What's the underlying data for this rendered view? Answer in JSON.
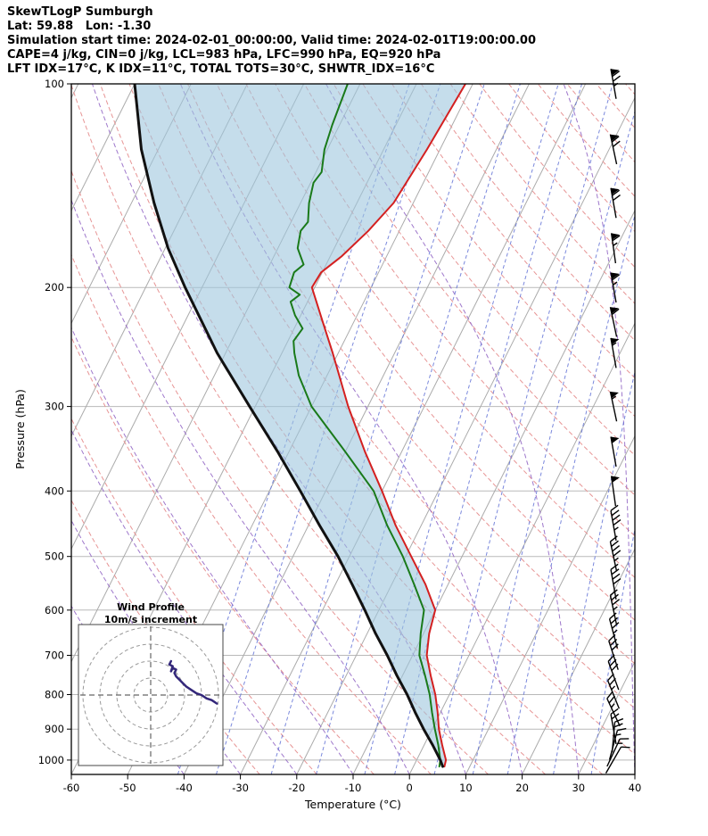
{
  "header": {
    "title": "SkewTLogP Sumburgh",
    "position_line": "Lat: 59.88   Lon: -1.30",
    "time_line": "Simulation start time: 2024-02-01_00:00:00, Valid time: 2024-02-01T19:00:00.00",
    "indices_line1": "CAPE=4 j/kg, CIN=0 j/kg, LCL=983 hPa, LFC=990 hPa, EQ=920 hPa",
    "indices_line2": "LFT IDX=17°C, K IDX=11°C, TOTAL TOTS=30°C, SHWTR_IDX=16°C"
  },
  "chart_data": {
    "type": "line",
    "title": "SkewTLogP Sumburgh",
    "xlabel": "Temperature (°C)",
    "ylabel": "Pressure (hPa)",
    "xlim": [
      -60,
      40
    ],
    "ylim": [
      1050,
      100
    ],
    "y_scale": "log",
    "skew": true,
    "temperature_ticks": [
      -60,
      -50,
      -40,
      -30,
      -20,
      -10,
      0,
      10,
      20,
      30,
      40
    ],
    "pressure_ticks": [
      100,
      200,
      300,
      400,
      500,
      600,
      700,
      800,
      900,
      1000
    ],
    "series": [
      {
        "name": "temperature",
        "color": "#d42020",
        "points": [
          [
            1022,
            5.5
          ],
          [
            1000,
            5.2
          ],
          [
            950,
            3.2
          ],
          [
            900,
            1.2
          ],
          [
            850,
            -0.5
          ],
          [
            800,
            -2.5
          ],
          [
            750,
            -5
          ],
          [
            700,
            -7.5
          ],
          [
            650,
            -9
          ],
          [
            600,
            -10
          ],
          [
            550,
            -14
          ],
          [
            500,
            -19
          ],
          [
            450,
            -24.5
          ],
          [
            400,
            -30
          ],
          [
            350,
            -36.5
          ],
          [
            300,
            -43.5
          ],
          [
            250,
            -51
          ],
          [
            225,
            -55.5
          ],
          [
            200,
            -60.5
          ],
          [
            190,
            -60.2
          ],
          [
            180,
            -58
          ],
          [
            165,
            -55.5
          ],
          [
            150,
            -53.5
          ],
          [
            125,
            -52.3
          ],
          [
            100,
            -51.3
          ]
        ]
      },
      {
        "name": "dewpoint",
        "color": "#1a7a1a",
        "points": [
          [
            1022,
            4.6
          ],
          [
            1000,
            4.2
          ],
          [
            950,
            2.5
          ],
          [
            900,
            0.5
          ],
          [
            850,
            -1.5
          ],
          [
            800,
            -3.5
          ],
          [
            750,
            -6
          ],
          [
            700,
            -8.8
          ],
          [
            650,
            -10.5
          ],
          [
            600,
            -12
          ],
          [
            550,
            -16
          ],
          [
            500,
            -20.5
          ],
          [
            450,
            -26
          ],
          [
            400,
            -31.5
          ],
          [
            350,
            -40
          ],
          [
            300,
            -50
          ],
          [
            270,
            -55
          ],
          [
            250,
            -57.8
          ],
          [
            240,
            -59
          ],
          [
            230,
            -58.5
          ],
          [
            220,
            -61
          ],
          [
            210,
            -63
          ],
          [
            205,
            -62
          ],
          [
            200,
            -64.5
          ],
          [
            190,
            -65
          ],
          [
            185,
            -64
          ],
          [
            175,
            -66.5
          ],
          [
            165,
            -67.5
          ],
          [
            160,
            -67
          ],
          [
            150,
            -68.5
          ],
          [
            140,
            -69.5
          ],
          [
            135,
            -69
          ],
          [
            125,
            -70.5
          ],
          [
            115,
            -71.3
          ],
          [
            100,
            -72.2
          ]
        ]
      },
      {
        "name": "parcel",
        "color": "#111111",
        "points": [
          [
            1022,
            5.2
          ],
          [
            1000,
            4.2
          ],
          [
            950,
            1.5
          ],
          [
            900,
            -1.5
          ],
          [
            850,
            -4.5
          ],
          [
            800,
            -7.5
          ],
          [
            750,
            -11
          ],
          [
            700,
            -14.5
          ],
          [
            650,
            -18.5
          ],
          [
            600,
            -22.5
          ],
          [
            550,
            -27
          ],
          [
            500,
            -32
          ],
          [
            450,
            -38
          ],
          [
            400,
            -44.5
          ],
          [
            350,
            -52
          ],
          [
            300,
            -61
          ],
          [
            250,
            -71.5
          ],
          [
            200,
            -83
          ],
          [
            175,
            -89.5
          ],
          [
            150,
            -96
          ],
          [
            125,
            -103
          ],
          [
            100,
            -110
          ]
        ]
      }
    ],
    "shade_between": [
      "parcel",
      "temperature"
    ],
    "shade_color": "#9fc6dd",
    "wind_barbs": [
      {
        "p": 100,
        "kt": 75,
        "dir": 350
      },
      {
        "p": 125,
        "kt": 70,
        "dir": 348
      },
      {
        "p": 150,
        "kt": 70,
        "dir": 350
      },
      {
        "p": 175,
        "kt": 65,
        "dir": 352
      },
      {
        "p": 200,
        "kt": 65,
        "dir": 350
      },
      {
        "p": 225,
        "kt": 60,
        "dir": 348
      },
      {
        "p": 250,
        "kt": 55,
        "dir": 350
      },
      {
        "p": 300,
        "kt": 55,
        "dir": 348
      },
      {
        "p": 350,
        "kt": 50,
        "dir": 350
      },
      {
        "p": 400,
        "kt": 50,
        "dir": 352
      },
      {
        "p": 450,
        "kt": 45,
        "dir": 350
      },
      {
        "p": 500,
        "kt": 45,
        "dir": 348
      },
      {
        "p": 550,
        "kt": 40,
        "dir": 350
      },
      {
        "p": 600,
        "kt": 35,
        "dir": 348
      },
      {
        "p": 650,
        "kt": 35,
        "dir": 345
      },
      {
        "p": 700,
        "kt": 30,
        "dir": 342
      },
      {
        "p": 750,
        "kt": 30,
        "dir": 340
      },
      {
        "p": 800,
        "kt": 25,
        "dir": 338
      },
      {
        "p": 850,
        "kt": 25,
        "dir": 335
      },
      {
        "p": 900,
        "kt": 20,
        "dir": 350
      },
      {
        "p": 925,
        "kt": 20,
        "dir": 5
      },
      {
        "p": 950,
        "kt": 15,
        "dir": 15
      },
      {
        "p": 975,
        "kt": 15,
        "dir": 25
      },
      {
        "p": 1000,
        "kt": 10,
        "dir": 30
      }
    ],
    "hodograph": {
      "title": "Wind Profile",
      "subtitle": "10m/s increment",
      "rings_ms": [
        10,
        20,
        30,
        40
      ],
      "trace_color": "#33277a",
      "trace_uv": [
        [
          39,
          -5
        ],
        [
          36,
          -3
        ],
        [
          33,
          -2
        ],
        [
          30,
          0
        ],
        [
          27,
          1
        ],
        [
          24,
          3
        ],
        [
          21,
          5
        ],
        [
          19,
          7
        ],
        [
          17,
          9
        ],
        [
          15,
          11
        ],
        [
          14,
          13
        ],
        [
          15,
          15
        ],
        [
          13,
          16
        ],
        [
          12,
          14
        ],
        [
          13,
          17
        ],
        [
          11,
          18
        ],
        [
          12,
          20
        ]
      ]
    },
    "background": {
      "isotherms_c": {
        "min": -160,
        "max": 40,
        "step": 10
      },
      "dry_adiabats_theta_c": {
        "min": -30,
        "max": 210,
        "step": 10
      },
      "moist_adiabat_start_c": [
        -40,
        -30,
        -20,
        -10,
        0,
        10,
        20,
        30,
        40
      ],
      "mixing_ratios_gkg": [
        0.1,
        0.2,
        0.5,
        1,
        2,
        3,
        5,
        8,
        12,
        20,
        30
      ],
      "colors": {
        "isotherm": "#ababab",
        "pressure_gridline": "#b9b9b9",
        "dry_adiabat": "#e79595",
        "moist_adiabat": "#8d5fc2",
        "mixing_ratio": "#6373d6"
      }
    }
  }
}
